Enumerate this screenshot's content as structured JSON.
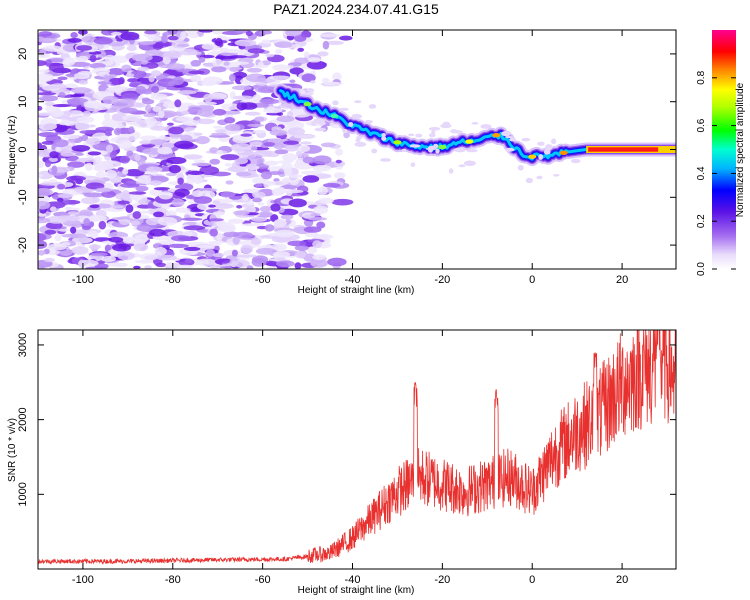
{
  "title": "PAZ1.2024.234.07.41.G15",
  "chart_data": [
    {
      "type": "heatmap",
      "title": "PAZ1.2024.234.07.41.G15",
      "xlabel": "Height of straight line (km)",
      "ylabel": "Frequency (Hz)",
      "xlim": [
        -110,
        32
      ],
      "ylim": [
        -25,
        25
      ],
      "x_ticks": [
        "-100",
        "-80",
        "-60",
        "-40",
        "-20",
        "0",
        "20"
      ],
      "y_ticks": [
        "-20",
        "-10",
        "0",
        "10",
        "20"
      ],
      "colorbar": {
        "label": "Normalized spectral amplitude",
        "range": [
          0,
          1
        ],
        "ticks": [
          "0.0",
          "0.2",
          "0.4",
          "0.6",
          "0.8"
        ],
        "colormap": "rainbow (white-purple-blue-cyan-green-yellow-red-pink)"
      },
      "ridge_center": {
        "height_km": [
          -56,
          -52,
          -48,
          -44,
          -40,
          -36,
          -32,
          -28,
          -24,
          -20,
          -16,
          -12,
          -8,
          -6,
          -4,
          -2,
          0,
          4,
          8,
          12,
          20,
          30
        ],
        "frequency_hz": [
          12,
          10.5,
          8.5,
          7,
          5,
          3.5,
          2,
          1,
          0.5,
          0.5,
          1.5,
          1.8,
          3,
          2.5,
          0.5,
          -1,
          -1.5,
          -1.3,
          -0.5,
          0,
          0,
          0
        ]
      },
      "noise_region_km": [
        -110,
        -55
      ],
      "grid": false
    },
    {
      "type": "line",
      "xlabel": "Height of straight line (km)",
      "ylabel": "SNR (10 * v/v)",
      "xlim": [
        -110,
        32
      ],
      "ylim": [
        0,
        3200
      ],
      "x_ticks": [
        "-100",
        "-80",
        "-60",
        "-40",
        "-20",
        "0",
        "20"
      ],
      "y_ticks": [
        "1000",
        "2000",
        "3000"
      ],
      "color": "#e8312f",
      "trend": {
        "x": [
          -110,
          -90,
          -70,
          -55,
          -45,
          -40,
          -35,
          -30,
          -25,
          -20,
          -15,
          -10,
          -5,
          0,
          5,
          10,
          15,
          20,
          25,
          30,
          32
        ],
        "y": [
          100,
          100,
          120,
          130,
          200,
          400,
          700,
          1000,
          1200,
          1100,
          1000,
          1100,
          1200,
          1000,
          1500,
          1800,
          2000,
          2400,
          2600,
          2700,
          2500
        ]
      },
      "peaks": [
        {
          "x": -26,
          "y": 2500
        },
        {
          "x": -8,
          "y": 2400
        },
        {
          "x": 14,
          "y": 2900
        },
        {
          "x": 28,
          "y": 3100
        }
      ],
      "grid": false
    }
  ]
}
